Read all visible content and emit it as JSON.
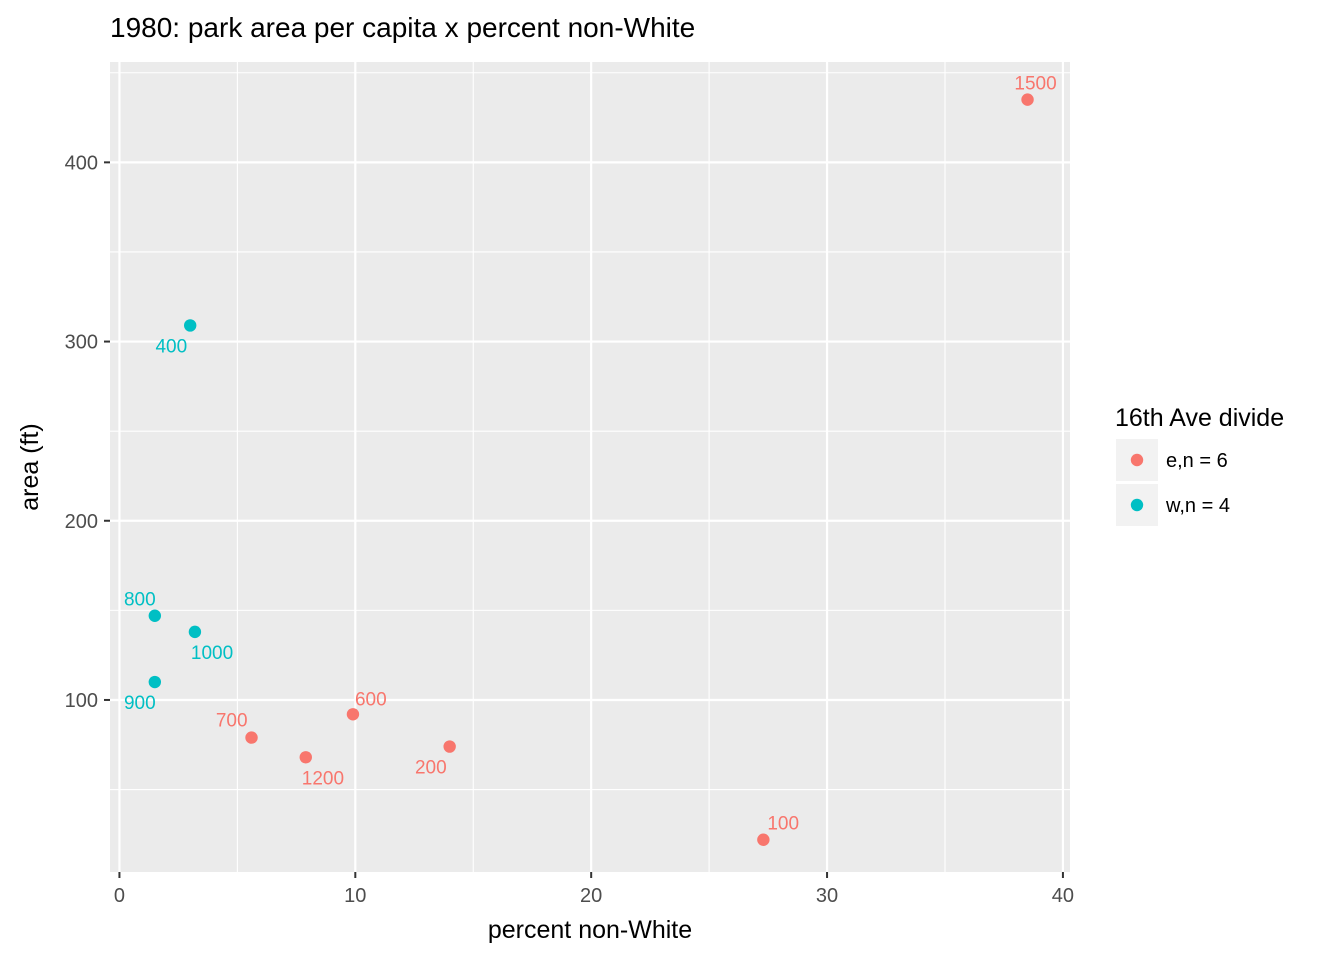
{
  "chart_data": {
    "type": "scatter",
    "title": "1980: park area per capita x percent non-White",
    "xlabel": "percent non-White",
    "ylabel": "area (ft)",
    "xlim": [
      -0.4,
      40.3
    ],
    "ylim": [
      4,
      456
    ],
    "x_ticks": [
      0,
      10,
      20,
      30,
      40
    ],
    "y_ticks": [
      100,
      200,
      300,
      400
    ],
    "x_tick_labels": [
      "0",
      "10",
      "20",
      "30",
      "40"
    ],
    "y_tick_labels": [
      "100",
      "200",
      "300",
      "400"
    ],
    "grid": true,
    "legend": {
      "title": "16th Ave divide",
      "position": "right"
    },
    "series": [
      {
        "name": "e,n = 6",
        "color": "#F8766D",
        "points": [
          {
            "x": 38.5,
            "y": 435,
            "label": "1500"
          },
          {
            "x": 9.9,
            "y": 92,
            "label": "600"
          },
          {
            "x": 5.6,
            "y": 79,
            "label": "700"
          },
          {
            "x": 7.9,
            "y": 68,
            "label": "1200"
          },
          {
            "x": 14.0,
            "y": 74,
            "label": "200"
          },
          {
            "x": 27.3,
            "y": 22,
            "label": "100"
          }
        ]
      },
      {
        "name": "w,n = 4",
        "color": "#00BFC4",
        "points": [
          {
            "x": 3.0,
            "y": 309,
            "label": "400"
          },
          {
            "x": 1.5,
            "y": 147,
            "label": "800"
          },
          {
            "x": 3.2,
            "y": 138,
            "label": "1000"
          },
          {
            "x": 1.5,
            "y": 110,
            "label": "900"
          }
        ]
      }
    ]
  }
}
